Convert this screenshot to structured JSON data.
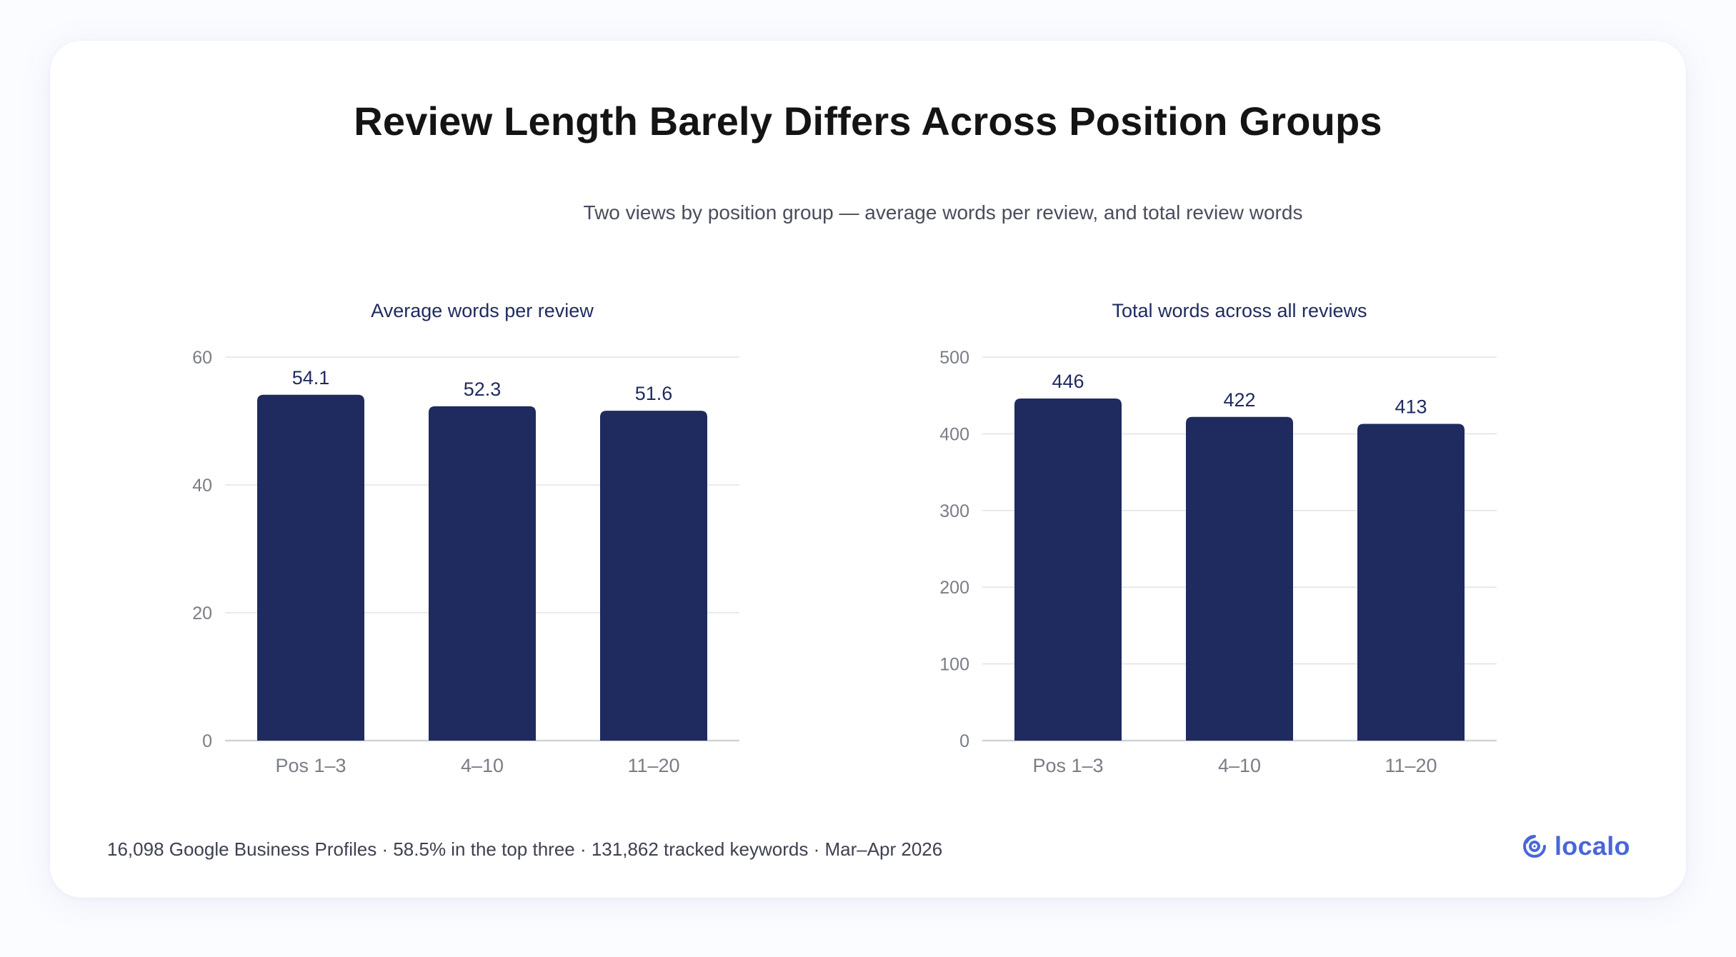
{
  "header": {
    "title": "Review Length Barely Differs Across Position Groups",
    "subtitle": "Two views by position group — average words per review, and total review words"
  },
  "footer": {
    "note": "16,098 Google Business Profiles · 58.5% in the top three · 131,862 tracked keywords · Mar–Apr 2026",
    "brand": "localo"
  },
  "colors": {
    "bar": "#1f2a5f",
    "value_label": "#1f2a5f",
    "panel_title": "#1f2a5f",
    "tick_label": "#7a7d86",
    "grid": "#e2e4ea",
    "axis": "#cfd2da",
    "brand": "#4a67d8"
  },
  "chart_data": [
    {
      "type": "bar",
      "title": "Average words per review",
      "categories": [
        "Pos 1–3",
        "4–10",
        "11–20"
      ],
      "values": [
        54.1,
        52.3,
        51.6
      ],
      "value_labels": [
        "54.1",
        "52.3",
        "51.6"
      ],
      "ylim": [
        0,
        60
      ],
      "yticks": [
        0,
        20,
        40,
        60
      ],
      "grid": true,
      "xlabel": "",
      "ylabel": ""
    },
    {
      "type": "bar",
      "title": "Total words across all reviews",
      "categories": [
        "Pos 1–3",
        "4–10",
        "11–20"
      ],
      "values": [
        446,
        422,
        413
      ],
      "value_labels": [
        "446",
        "422",
        "413"
      ],
      "ylim": [
        0,
        500
      ],
      "yticks": [
        0,
        100,
        200,
        300,
        400,
        500
      ],
      "grid": true,
      "xlabel": "",
      "ylabel": ""
    }
  ]
}
